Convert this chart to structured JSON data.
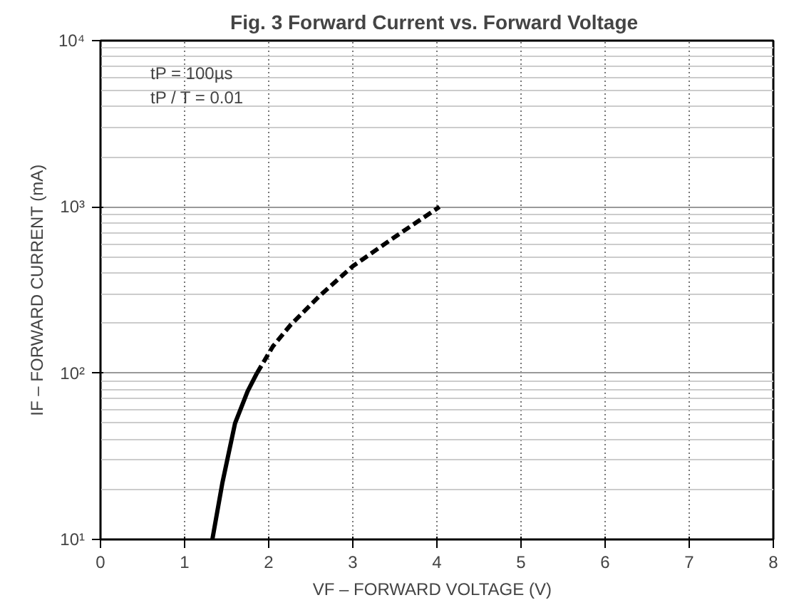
{
  "chart_data": {
    "type": "line",
    "title": "Fig. 3  Forward Current vs. Forward Voltage",
    "xlabel": "VF  –  FORWARD VOLTAGE (V)",
    "ylabel": "IF – FORWARD CURRENT (mA)",
    "annotations": [
      "tP = 100µs",
      "tP / T = 0.01"
    ],
    "log": "y",
    "grid": true,
    "xlim": [
      0,
      8
    ],
    "xticks": [
      0,
      1,
      2,
      3,
      4,
      5,
      6,
      7,
      8
    ],
    "ylim": [
      10,
      10000
    ],
    "yticks": [
      {
        "value": 10,
        "label": "10¹"
      },
      {
        "value": 100,
        "label": "10²"
      },
      {
        "value": 1000,
        "label": "10³"
      },
      {
        "value": 10000,
        "label": "10⁴"
      }
    ],
    "series": [
      {
        "color": "#000000",
        "line_style": "solid",
        "x": [
          1.33,
          1.45,
          1.6,
          1.75,
          1.86
        ],
        "values": [
          10,
          22,
          50,
          78,
          100
        ]
      },
      {
        "color": "#000000",
        "line_style": "dashed",
        "x": [
          1.86,
          2.05,
          2.26,
          2.6,
          3.0,
          3.5,
          4.03
        ],
        "values": [
          100,
          145,
          195,
          290,
          440,
          660,
          1000
        ]
      }
    ]
  }
}
